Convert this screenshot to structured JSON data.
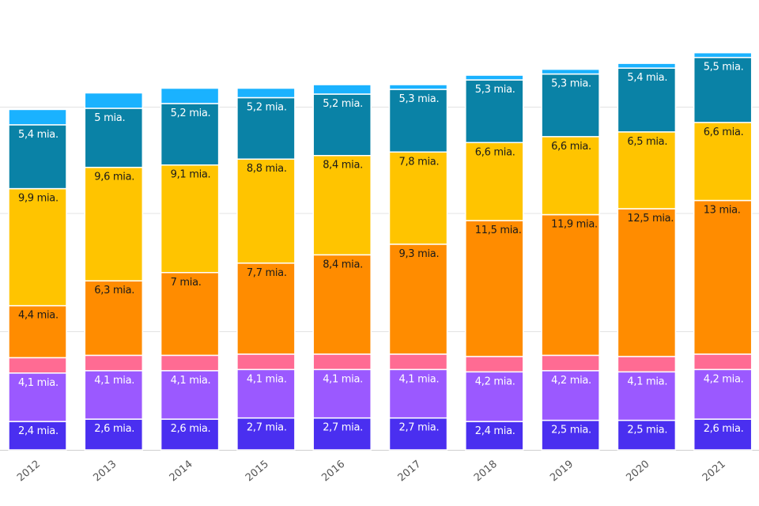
{
  "chart_data": {
    "type": "bar",
    "stacked": true,
    "categories": [
      "2012",
      "2013",
      "2014",
      "2015",
      "2016",
      "2017",
      "2018",
      "2019",
      "2020",
      "2021"
    ],
    "series": [
      {
        "color": "#4a2ff0",
        "label_color": "#ffffff",
        "values": [
          2.4,
          2.6,
          2.6,
          2.7,
          2.7,
          2.7,
          2.4,
          2.5,
          2.5,
          2.6
        ],
        "labels": [
          "2,4 mia.",
          "2,6 mia.",
          "2,6 mia.",
          "2,7 mia.",
          "2,7 mia.",
          "2,7 mia.",
          "2,4 mia.",
          "2,5 mia.",
          "2,5 mia.",
          "2,6 mia."
        ]
      },
      {
        "color": "#9b59ff",
        "label_color": "#ffffff",
        "values": [
          4.1,
          4.1,
          4.1,
          4.1,
          4.1,
          4.1,
          4.2,
          4.2,
          4.1,
          4.2
        ],
        "labels": [
          "4,1 mia.",
          "4,1 mia.",
          "4,1 mia.",
          "4,1 mia.",
          "4,1 mia.",
          "4,1 mia.",
          "4,2 mia.",
          "4,2 mia.",
          "4,1 mia.",
          "4,2 mia."
        ]
      },
      {
        "color": "#ff6b93",
        "label_color": "#ffffff",
        "values": [
          1.3,
          1.3,
          1.3,
          1.3,
          1.3,
          1.3,
          1.3,
          1.3,
          1.3,
          1.3
        ],
        "labels": [
          "",
          "",
          "",
          "",
          "",
          "",
          "",
          "",
          "",
          ""
        ]
      },
      {
        "color": "#ff8c00",
        "label_color": "#1a1a1a",
        "values": [
          4.4,
          6.3,
          7.0,
          7.7,
          8.4,
          9.3,
          11.5,
          11.9,
          12.5,
          13.0
        ],
        "labels": [
          "4,4 mia.",
          "6,3 mia.",
          "7 mia.",
          "7,7 mia.",
          "8,4 mia.",
          "9,3 mia.",
          "11,5 mia.",
          "11,9 mia.",
          "12,5 mia.",
          "13 mia."
        ]
      },
      {
        "color": "#ffc400",
        "label_color": "#1a1a1a",
        "values": [
          9.9,
          9.6,
          9.1,
          8.8,
          8.4,
          7.8,
          6.6,
          6.6,
          6.5,
          6.6
        ],
        "labels": [
          "9,9 mia.",
          "9,6 mia.",
          "9,1 mia.",
          "8,8 mia.",
          "8,4 mia.",
          "7,8 mia.",
          "6,6 mia.",
          "6,6 mia.",
          "6,5 mia.",
          "6,6 mia."
        ]
      },
      {
        "color": "#0a82a6",
        "label_color": "#ffffff",
        "values": [
          5.4,
          5.0,
          5.2,
          5.2,
          5.2,
          5.3,
          5.3,
          5.3,
          5.4,
          5.5
        ],
        "labels": [
          "5,4 mia.",
          "5 mia.",
          "5,2 mia.",
          "5,2 mia.",
          "5,2 mia.",
          "5,3 mia.",
          "5,3 mia.",
          "5,3 mia.",
          "5,4 mia.",
          "5,5 mia."
        ]
      },
      {
        "color": "#1ab2ff",
        "label_color": "#ffffff",
        "values": [
          1.3,
          1.3,
          1.3,
          0.8,
          0.8,
          0.4,
          0.4,
          0.4,
          0.4,
          0.4
        ],
        "labels": [
          "",
          "",
          "",
          "",
          "",
          "",
          "",
          "",
          "",
          ""
        ]
      }
    ],
    "ylim": [
      0,
      34
    ],
    "grid": true,
    "legend": "none",
    "title": "",
    "xlabel": "",
    "ylabel": ""
  }
}
